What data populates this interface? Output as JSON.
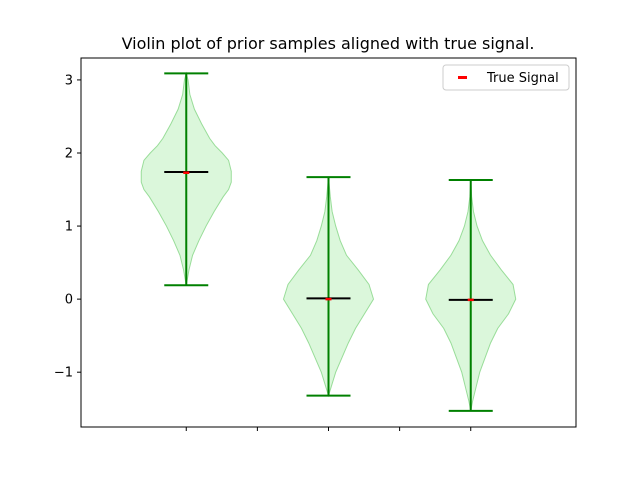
{
  "chart_data": {
    "type": "violin",
    "title": "Violin plot of prior samples aligned with true signal.",
    "xlabel": "",
    "ylabel": "",
    "ylim": [
      -1.75,
      3.3
    ],
    "y_ticks": [
      -1,
      0,
      1,
      2,
      3
    ],
    "x_positions": [
      1,
      2,
      3
    ],
    "xlim": [
      0.26,
      3.74
    ],
    "x_minor_ticks": [
      1.5,
      2.5
    ],
    "violins": [
      {
        "position": 1,
        "min": 0.19,
        "max": 3.09,
        "median": 1.74,
        "profile": [
          [
            0.19,
            0.0
          ],
          [
            0.4,
            0.03
          ],
          [
            0.6,
            0.07
          ],
          [
            0.8,
            0.14
          ],
          [
            1.0,
            0.22
          ],
          [
            1.2,
            0.31
          ],
          [
            1.4,
            0.41
          ],
          [
            1.5,
            0.47
          ],
          [
            1.6,
            0.5
          ],
          [
            1.75,
            0.5
          ],
          [
            1.9,
            0.47
          ],
          [
            2.0,
            0.4
          ],
          [
            2.1,
            0.32
          ],
          [
            2.2,
            0.26
          ],
          [
            2.4,
            0.17
          ],
          [
            2.6,
            0.09
          ],
          [
            2.8,
            0.04
          ],
          [
            3.0,
            0.02
          ],
          [
            3.09,
            0.0
          ]
        ]
      },
      {
        "position": 2,
        "min": -1.32,
        "max": 1.67,
        "median": 0.01,
        "profile": [
          [
            -1.32,
            0.0
          ],
          [
            -1.2,
            0.03
          ],
          [
            -1.0,
            0.08
          ],
          [
            -0.8,
            0.15
          ],
          [
            -0.6,
            0.22
          ],
          [
            -0.4,
            0.3
          ],
          [
            -0.2,
            0.4
          ],
          [
            0.0,
            0.5
          ],
          [
            0.2,
            0.45
          ],
          [
            0.4,
            0.33
          ],
          [
            0.6,
            0.2
          ],
          [
            0.8,
            0.13
          ],
          [
            1.0,
            0.08
          ],
          [
            1.2,
            0.04
          ],
          [
            1.4,
            0.02
          ],
          [
            1.67,
            0.0
          ]
        ]
      },
      {
        "position": 3,
        "min": -1.53,
        "max": 1.63,
        "median": -0.01,
        "profile": [
          [
            -1.53,
            0.0
          ],
          [
            -1.4,
            0.02
          ],
          [
            -1.2,
            0.06
          ],
          [
            -1.0,
            0.1
          ],
          [
            -0.8,
            0.16
          ],
          [
            -0.6,
            0.22
          ],
          [
            -0.4,
            0.3
          ],
          [
            -0.2,
            0.42
          ],
          [
            0.0,
            0.5
          ],
          [
            0.2,
            0.47
          ],
          [
            0.4,
            0.34
          ],
          [
            0.6,
            0.22
          ],
          [
            0.8,
            0.13
          ],
          [
            1.0,
            0.07
          ],
          [
            1.2,
            0.03
          ],
          [
            1.4,
            0.01
          ],
          [
            1.63,
            0.0
          ]
        ]
      }
    ],
    "true_signal": [
      {
        "x": 1,
        "y": 1.73
      },
      {
        "x": 2,
        "y": 0.0
      },
      {
        "x": 3,
        "y": -0.01
      }
    ],
    "legend": {
      "entries": [
        "True Signal"
      ],
      "placement": "top-right"
    },
    "grid": false,
    "colors": {
      "violin_fill": "#dbf7db",
      "violin_edge": "#99dd99",
      "whisker": "#008000",
      "median": "#000000",
      "true_signal": "#ff0000"
    }
  }
}
